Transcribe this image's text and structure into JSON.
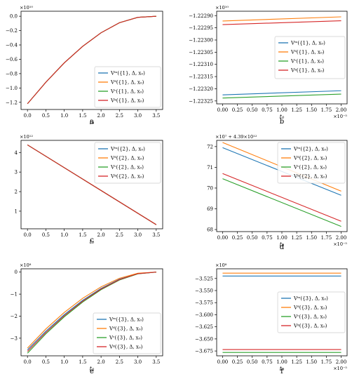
{
  "panels": [
    {
      "panel_label": "a",
      "multiplier": "×10¹⁰",
      "xlabel": "t₀",
      "legend": [
        "Vᵐ({1}, Δ, x₀)",
        "Vᵈ({1}, Δ, x₀)",
        "Vᶜ({1}, Δ, x₀)",
        "Vᵍ({1}, Δ, x₀)"
      ]
    },
    {
      "panel_label": "b",
      "multiplier": "×10¹⁰",
      "xmultiplier": "×10⁻⁵",
      "xlabel": "t₀",
      "legend": [
        "Vᵐ({1}, Δ, x₀)",
        "Vᵈ({1}, Δ, x₀)",
        "Vᶜ({1}, Δ, x₀)",
        "Vᵍ({1}, Δ, x₀)"
      ]
    },
    {
      "panel_label": "c",
      "multiplier": "×10¹²",
      "xlabel": "t₀",
      "legend": [
        "Vᵐ({2}, Δ, x₀)",
        "Vᵈ({2}, Δ, x₀)",
        "Vᶜ({2}, Δ, x₀)",
        "Vᵍ({2}, Δ, x₀)"
      ]
    },
    {
      "panel_label": "d",
      "multiplier": "×10⁷ + 4.39×10¹²",
      "xmultiplier": "×10⁻⁵",
      "xlabel": "t₀",
      "legend": [
        "Vᵐ({2}, Δ, x₀)",
        "Vᵈ({2}, Δ, x₀)",
        "Vᶜ({2}, Δ, x₀)",
        "Vᵍ({2}, Δ, x₀)"
      ]
    },
    {
      "panel_label": "e",
      "multiplier": "×10⁸",
      "xlabel": "t₀",
      "legend": [
        "Vᵐ({3}, Δ, x₀)",
        "Vᵈ({3}, Δ, x₀)",
        "Vᶜ({3}, Δ, x₀)",
        "Vᵍ({3}, Δ, x₀)"
      ]
    },
    {
      "panel_label": "f",
      "multiplier": "×10⁸",
      "xmultiplier": "×10⁻⁵",
      "xlabel": "t₀",
      "legend": [
        "Vᵐ({3}, Δ, x₀)",
        "Vᵈ({3}, Δ, x₀)",
        "Vᶜ({3}, Δ, x₀)",
        "Vᵍ({3}, Δ, x₀)"
      ]
    }
  ],
  "colors": [
    "#1f77b4",
    "#ff7f0e",
    "#2ca02c",
    "#d62728"
  ],
  "chart_data": [
    {
      "type": "line",
      "xlim": [
        -0.175,
        3.675
      ],
      "ylim": [
        -1.3,
        0.07
      ],
      "xticks": [
        0.0,
        0.5,
        1.0,
        1.5,
        2.0,
        2.5,
        3.0,
        3.5
      ],
      "xtick_labels": [
        "0.0",
        "0.5",
        "1.0",
        "1.5",
        "2.0",
        "2.5",
        "3.0",
        "3.5"
      ],
      "yticks": [
        -1.2,
        -1.0,
        -0.8,
        -0.6,
        -0.4,
        -0.2,
        0.0
      ],
      "ytick_labels": [
        "−1.2",
        "−1.0",
        "−0.8",
        "−0.6",
        "−0.4",
        "−0.2",
        "0.0"
      ],
      "legend_position": "lower-right",
      "x": [
        0.0,
        0.5,
        1.0,
        1.5,
        2.0,
        2.5,
        3.0,
        3.5
      ],
      "series": [
        {
          "values": [
            -1.22,
            -0.92,
            -0.65,
            -0.42,
            -0.23,
            -0.09,
            -0.015,
            0.0
          ]
        },
        {
          "values": [
            -1.22,
            -0.92,
            -0.65,
            -0.42,
            -0.23,
            -0.09,
            -0.015,
            0.0
          ]
        },
        {
          "values": [
            -1.22,
            -0.92,
            -0.65,
            -0.42,
            -0.23,
            -0.09,
            -0.015,
            0.0
          ]
        },
        {
          "values": [
            -1.22,
            -0.92,
            -0.65,
            -0.42,
            -0.23,
            -0.09,
            -0.015,
            0.0
          ]
        }
      ]
    },
    {
      "type": "line",
      "xlim": [
        -0.1,
        2.1
      ],
      "ylim": [
        -1.223262,
        -1.222882
      ],
      "xticks": [
        0.0,
        0.25,
        0.5,
        0.75,
        1.0,
        1.25,
        1.5,
        1.75,
        2.0
      ],
      "xtick_labels": [
        "0.00",
        "0.25",
        "0.50",
        "0.75",
        "1.00",
        "1.25",
        "1.50",
        "1.75",
        "2.00"
      ],
      "yticks": [
        -1.2229,
        -1.22295,
        -1.223,
        -1.22305,
        -1.2231,
        -1.22315,
        -1.2232,
        -1.22325
      ],
      "ytick_labels": [
        "−1.22290",
        "−1.22295",
        "−1.22300",
        "−1.22305",
        "−1.22310",
        "−1.22315",
        "−1.22320",
        "−1.22325"
      ],
      "legend_position": "center-right",
      "x": [
        0.0,
        2.0
      ],
      "series": [
        {
          "values": [
            -1.223225,
            -1.223208
          ]
        },
        {
          "values": [
            -1.222922,
            -1.222905
          ]
        },
        {
          "values": [
            -1.223238,
            -1.223222
          ]
        },
        {
          "values": [
            -1.222937,
            -1.222921
          ]
        }
      ]
    },
    {
      "type": "line",
      "xlim": [
        -0.175,
        3.675
      ],
      "ylim": [
        0.1,
        4.62
      ],
      "xticks": [
        0.0,
        0.5,
        1.0,
        1.5,
        2.0,
        2.5,
        3.0,
        3.5
      ],
      "xtick_labels": [
        "0.0",
        "0.5",
        "1.0",
        "1.5",
        "2.0",
        "2.5",
        "3.0",
        "3.5"
      ],
      "yticks": [
        1,
        2,
        3,
        4
      ],
      "ytick_labels": [
        "1",
        "2",
        "3",
        "4"
      ],
      "legend_position": "upper-right",
      "x": [
        0.0,
        3.5
      ],
      "series": [
        {
          "values": [
            4.39,
            0.31
          ]
        },
        {
          "values": [
            4.39,
            0.31
          ]
        },
        {
          "values": [
            4.39,
            0.31
          ]
        },
        {
          "values": [
            4.39,
            0.31
          ]
        }
      ]
    },
    {
      "type": "line",
      "xlim": [
        -0.1,
        2.1
      ],
      "ylim": [
        67.9,
        72.3
      ],
      "xticks": [
        0.0,
        0.25,
        0.5,
        0.75,
        1.0,
        1.25,
        1.5,
        1.75,
        2.0
      ],
      "xtick_labels": [
        "0.00",
        "0.25",
        "0.50",
        "0.75",
        "1.00",
        "1.25",
        "1.50",
        "1.75",
        "2.00"
      ],
      "yticks": [
        68,
        69,
        70,
        71,
        72
      ],
      "ytick_labels": [
        "68",
        "69",
        "70",
        "71",
        "72"
      ],
      "legend_position": "upper-right",
      "x": [
        0.0,
        2.0
      ],
      "series": [
        {
          "values": [
            71.95,
            69.65
          ]
        },
        {
          "values": [
            72.2,
            69.85
          ]
        },
        {
          "values": [
            70.45,
            68.15
          ]
        },
        {
          "values": [
            70.7,
            68.4
          ]
        }
      ]
    },
    {
      "type": "line",
      "xlim": [
        -0.175,
        3.675
      ],
      "ylim": [
        -3.8,
        0.15
      ],
      "xticks": [
        0.0,
        0.5,
        1.0,
        1.5,
        2.0,
        2.5,
        3.0,
        3.5
      ],
      "xtick_labels": [
        "0.0",
        "0.5",
        "1.0",
        "1.5",
        "2.0",
        "2.5",
        "3.0",
        "3.5"
      ],
      "yticks": [
        -3,
        -2,
        -1,
        0
      ],
      "ytick_labels": [
        "−3",
        "−2",
        "−1",
        "0"
      ],
      "legend_position": "lower-right",
      "x": [
        0.0,
        0.5,
        1.0,
        1.5,
        2.0,
        2.5,
        3.0,
        3.5
      ],
      "series": [
        {
          "values": [
            -3.53,
            -2.68,
            -1.93,
            -1.28,
            -0.74,
            -0.32,
            -0.07,
            0.0
          ]
        },
        {
          "values": [
            -3.45,
            -2.58,
            -1.83,
            -1.19,
            -0.67,
            -0.28,
            -0.05,
            0.0
          ]
        },
        {
          "values": [
            -3.68,
            -2.8,
            -2.03,
            -1.36,
            -0.8,
            -0.36,
            -0.08,
            0.0
          ]
        },
        {
          "values": [
            -3.6,
            -2.74,
            -1.98,
            -1.32,
            -0.77,
            -0.34,
            -0.07,
            0.0
          ]
        }
      ]
    },
    {
      "type": "line",
      "xlim": [
        -0.1,
        2.1
      ],
      "ylim": [
        -3.685,
        -3.505
      ],
      "xticks": [
        0.0,
        0.25,
        0.5,
        0.75,
        1.0,
        1.25,
        1.5,
        1.75,
        2.0
      ],
      "xtick_labels": [
        "0.00",
        "0.25",
        "0.50",
        "0.75",
        "1.00",
        "1.25",
        "1.50",
        "1.75",
        "2.00"
      ],
      "yticks": [
        -3.525,
        -3.55,
        -3.575,
        -3.6,
        -3.625,
        -3.65,
        -3.675
      ],
      "ytick_labels": [
        "−3.525",
        "−3.550",
        "−3.575",
        "−3.600",
        "−3.625",
        "−3.650",
        "−3.675"
      ],
      "legend_position": "center-right",
      "x": [
        0.0,
        2.0
      ],
      "series": [
        {
          "values": [
            -3.52,
            -3.52
          ]
        },
        {
          "values": [
            -3.514,
            -3.514
          ]
        },
        {
          "values": [
            -3.678,
            -3.678
          ]
        },
        {
          "values": [
            -3.672,
            -3.672
          ]
        }
      ]
    }
  ]
}
